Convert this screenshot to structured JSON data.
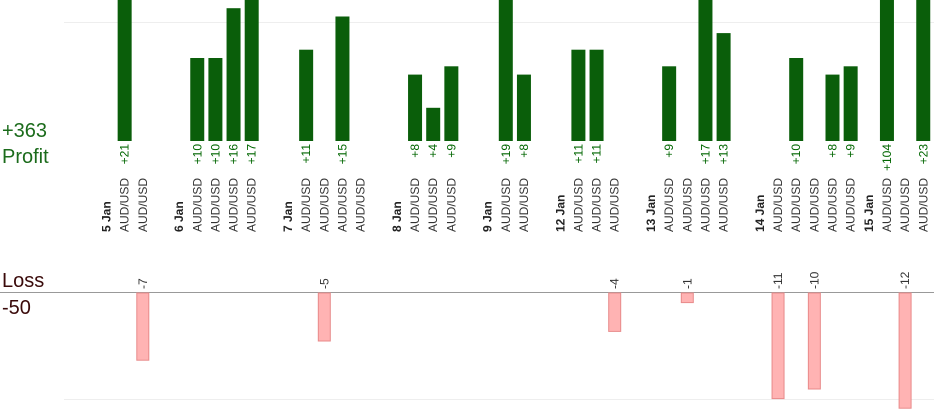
{
  "chart_data": {
    "type": "bar",
    "summary": {
      "profit_total": "+363",
      "profit_label": "Profit",
      "loss_label": "Loss",
      "loss_total": "-50"
    },
    "colors": {
      "profit_bar": "#0a5e0a",
      "profit_label": "#006600",
      "loss_bar": "#ffb3b3",
      "loss_label": "#333333",
      "profit_text": "#1b6b1b",
      "loss_text": "#3a0a0a"
    },
    "profit_axis_max": 17,
    "loss_axis_max": 12,
    "pair_label": "AUD/USD",
    "dates": [
      {
        "label": "5 Jan",
        "slot": 0
      },
      {
        "label": "6 Jan",
        "slot": 4
      },
      {
        "label": "7 Jan",
        "slot": 10
      },
      {
        "label": "8 Jan",
        "slot": 16
      },
      {
        "label": "9 Jan",
        "slot": 21
      },
      {
        "label": "12 Jan",
        "slot": 25
      },
      {
        "label": "13 Jan",
        "slot": 30
      },
      {
        "label": "14 Jan",
        "slot": 36
      },
      {
        "label": "15 Jan",
        "slot": 42
      }
    ],
    "trades": [
      {
        "slot": 1,
        "pair": "AUD/USD",
        "profit": 21
      },
      {
        "slot": 2,
        "pair": "AUD/USD",
        "loss": -7
      },
      {
        "slot": 5,
        "pair": "AUD/USD",
        "profit": 10
      },
      {
        "slot": 6,
        "pair": "AUD/USD",
        "profit": 10
      },
      {
        "slot": 7,
        "pair": "AUD/USD",
        "profit": 16
      },
      {
        "slot": 8,
        "pair": "AUD/USD",
        "profit": 17
      },
      {
        "slot": 11,
        "pair": "AUD/USD",
        "profit": 11
      },
      {
        "slot": 12,
        "pair": "AUD/USD",
        "loss": -5
      },
      {
        "slot": 13,
        "pair": "AUD/USD",
        "profit": 15
      },
      {
        "slot": 14,
        "pair": "AUD/USD"
      },
      {
        "slot": 17,
        "pair": "AUD/USD",
        "profit": 8
      },
      {
        "slot": 18,
        "pair": "AUD/USD",
        "profit": 4
      },
      {
        "slot": 19,
        "pair": "AUD/USD",
        "profit": 9
      },
      {
        "slot": 22,
        "pair": "AUD/USD",
        "profit": 19
      },
      {
        "slot": 23,
        "pair": "AUD/USD",
        "profit": 8
      },
      {
        "slot": 26,
        "pair": "AUD/USD",
        "profit": 11
      },
      {
        "slot": 27,
        "pair": "AUD/USD",
        "profit": 11
      },
      {
        "slot": 28,
        "pair": "AUD/USD",
        "loss": -4
      },
      {
        "slot": 31,
        "pair": "AUD/USD",
        "profit": 9
      },
      {
        "slot": 32,
        "pair": "AUD/USD",
        "loss": -1
      },
      {
        "slot": 33,
        "pair": "AUD/USD",
        "profit": 17
      },
      {
        "slot": 34,
        "pair": "AUD/USD",
        "profit": 13
      },
      {
        "slot": 37,
        "pair": "AUD/USD",
        "loss": -11
      },
      {
        "slot": 38,
        "pair": "AUD/USD",
        "profit": 10
      },
      {
        "slot": 39,
        "pair": "AUD/USD",
        "loss": -10
      },
      {
        "slot": 40,
        "pair": "AUD/USD",
        "profit": 8
      },
      {
        "slot": 41,
        "pair": "AUD/USD",
        "profit": 9
      },
      {
        "slot": 43,
        "pair": "AUD/USD",
        "profit": 104
      },
      {
        "slot": 44,
        "pair": "AUD/USD",
        "loss": -12
      },
      {
        "slot": 45,
        "pair": "AUD/USD",
        "profit": 23
      }
    ]
  }
}
